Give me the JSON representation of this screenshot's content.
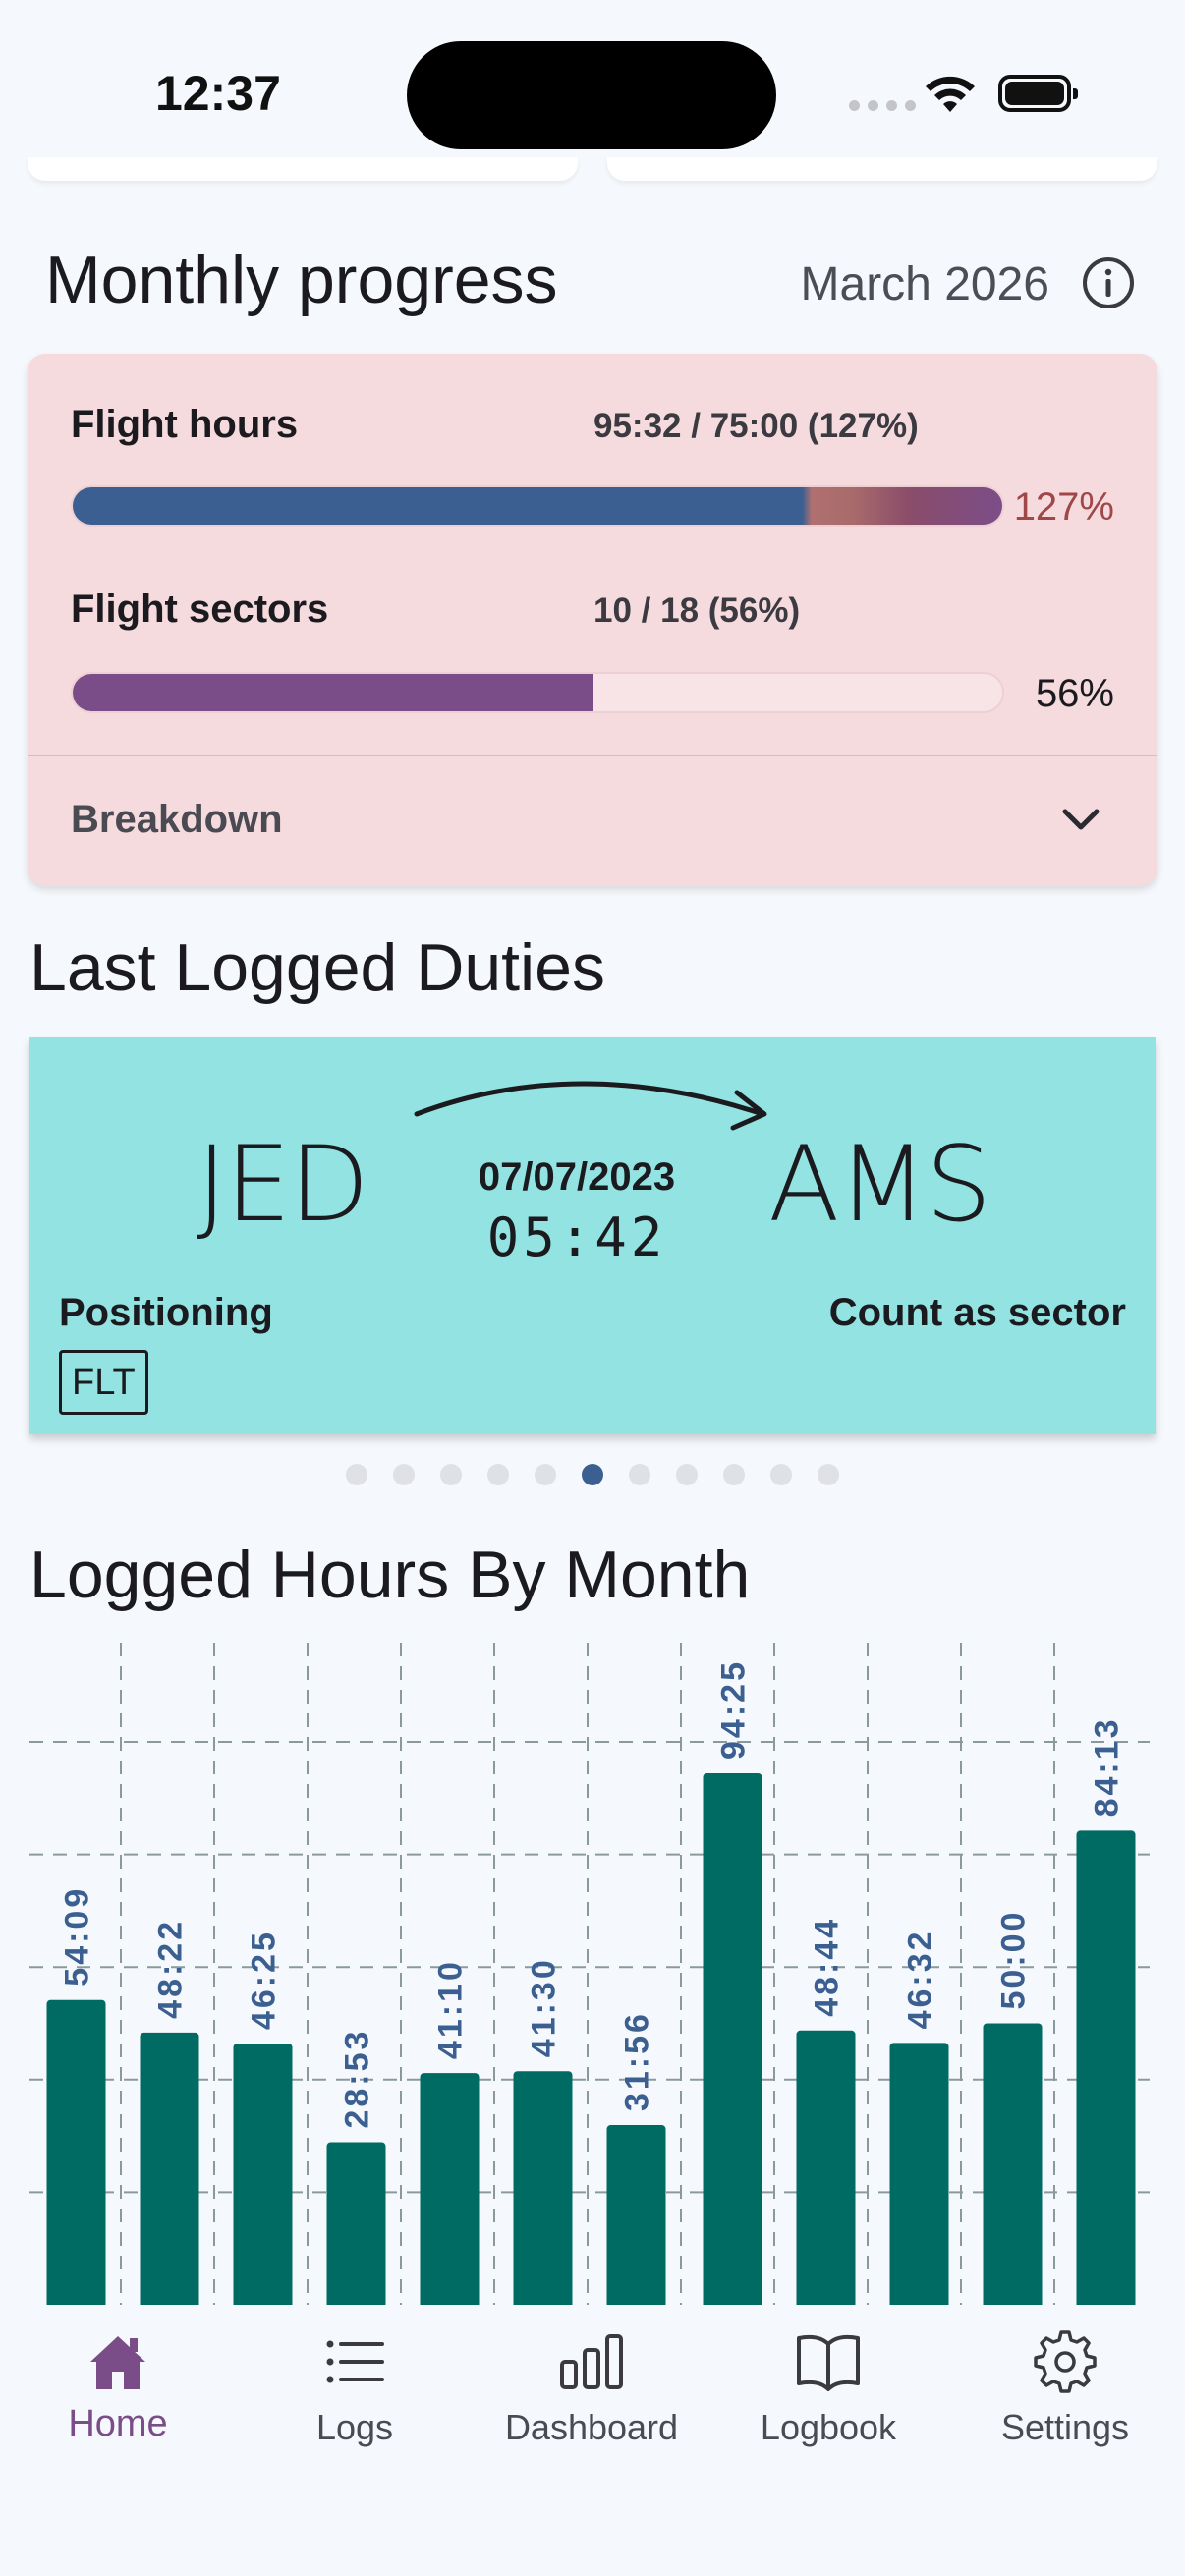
{
  "status_bar": {
    "time": "12:37"
  },
  "monthly_progress": {
    "title": "Monthly progress",
    "month": "March 2026",
    "flight_hours": {
      "label": "Flight hours",
      "value": "95:32 / 75:00 (127%)",
      "percent_label": "127%",
      "fraction": 1.27
    },
    "flight_sectors": {
      "label": "Flight sectors",
      "value": "10 / 18 (56%)",
      "percent_label": "56%",
      "fraction": 0.56
    },
    "breakdown_label": "Breakdown",
    "colors": {
      "hours_fill": "#3b5f90",
      "sectors_fill": "#7b4d88",
      "over_pct": "#a04747",
      "card_bg": "#f5dade"
    }
  },
  "last_logged_duties": {
    "title": "Last Logged Duties",
    "duty": {
      "from": "JED",
      "to": "AMS",
      "date": "07/07/2023",
      "time": "05:42",
      "type": "Positioning",
      "sector_note": "Count as sector",
      "badge": "FLT"
    },
    "pager": {
      "count": 11,
      "active_index": 5
    }
  },
  "logged_hours_chart": {
    "title": "Logged Hours By Month"
  },
  "chart_data": {
    "type": "bar",
    "title": "Logged Hours By Month",
    "categories": [
      "",
      "",
      "",
      "",
      "",
      "",
      "",
      "",
      "",
      "",
      "",
      ""
    ],
    "values": [
      54.15,
      48.37,
      46.42,
      28.88,
      41.17,
      41.5,
      31.93,
      94.42,
      48.73,
      46.53,
      50.0,
      84.22
    ],
    "value_labels": [
      "54:09",
      "48:22",
      "46:25",
      "28:53",
      "41:10",
      "41:30",
      "31:56",
      "94:25",
      "48:44",
      "46:32",
      "50:00",
      "84:13"
    ],
    "ylim": [
      0,
      100
    ],
    "grid": true,
    "bar_color": "#006b63",
    "label_color": "#3b5f90"
  },
  "bottom_nav": {
    "items": [
      {
        "label": "Home",
        "icon": "home-icon",
        "active": true
      },
      {
        "label": "Logs",
        "icon": "list-icon",
        "active": false
      },
      {
        "label": "Dashboard",
        "icon": "bar-chart-icon",
        "active": false
      },
      {
        "label": "Logbook",
        "icon": "book-icon",
        "active": false
      },
      {
        "label": "Settings",
        "icon": "gear-icon",
        "active": false
      }
    ],
    "active_color": "#7b4d88"
  }
}
